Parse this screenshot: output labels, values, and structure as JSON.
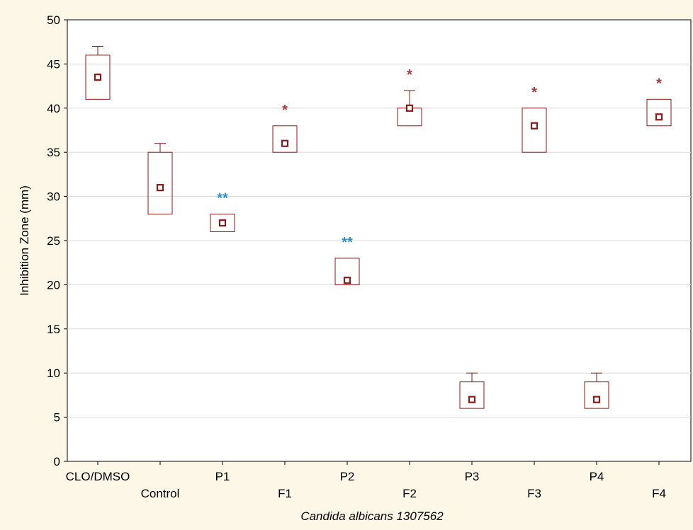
{
  "chart_data": {
    "type": "box",
    "xlabel": "Candida albicans 1307562",
    "ylabel": "Inhibition Zone (mm)",
    "ylim": [
      0,
      50
    ],
    "yticks": [
      0,
      5,
      10,
      15,
      20,
      25,
      30,
      35,
      40,
      45,
      50
    ],
    "grid": true,
    "categories": [
      "CLO/DMSO",
      "Control",
      "P1",
      "F1",
      "P2",
      "F2",
      "P3",
      "F3",
      "P4",
      "F4"
    ],
    "boxes": [
      {
        "category": "CLO/DMSO",
        "mean": 43.5,
        "box_low": 41,
        "box_high": 46,
        "whisker_low": 41,
        "whisker_high": 47,
        "marker": ""
      },
      {
        "category": "Control",
        "mean": 31,
        "box_low": 28,
        "box_high": 35,
        "whisker_low": 28,
        "whisker_high": 36,
        "marker": ""
      },
      {
        "category": "P1",
        "mean": 27,
        "box_low": 26,
        "box_high": 28,
        "whisker_low": 26,
        "whisker_high": 28,
        "marker": "**"
      },
      {
        "category": "F1",
        "mean": 36,
        "box_low": 35,
        "box_high": 38,
        "whisker_low": 35,
        "whisker_high": 38,
        "marker": "*"
      },
      {
        "category": "P2",
        "mean": 20.5,
        "box_low": 20,
        "box_high": 23,
        "whisker_low": 20,
        "whisker_high": 23,
        "marker": "**"
      },
      {
        "category": "F2",
        "mean": 40,
        "box_low": 38,
        "box_high": 40,
        "whisker_low": 38,
        "whisker_high": 42,
        "marker": "*"
      },
      {
        "category": "P3",
        "mean": 7,
        "box_low": 6,
        "box_high": 9,
        "whisker_low": 6,
        "whisker_high": 10,
        "marker": ""
      },
      {
        "category": "F3",
        "mean": 38,
        "box_low": 35,
        "box_high": 40,
        "whisker_low": 35,
        "whisker_high": 40,
        "marker": "*"
      },
      {
        "category": "P4",
        "mean": 7,
        "box_low": 6,
        "box_high": 9,
        "whisker_low": 6,
        "whisker_high": 10,
        "marker": ""
      },
      {
        "category": "F4",
        "mean": 39,
        "box_low": 38,
        "box_high": 41,
        "whisker_low": 38,
        "whisker_high": 41,
        "marker": "*"
      }
    ],
    "colors": {
      "box": "#8b1a1a",
      "single_star": "#b03a3a",
      "double_star": "#2f8fd0",
      "background": "#fdf7e7",
      "plot_background": "#ffffff",
      "grid": "#d9d9d9"
    }
  }
}
